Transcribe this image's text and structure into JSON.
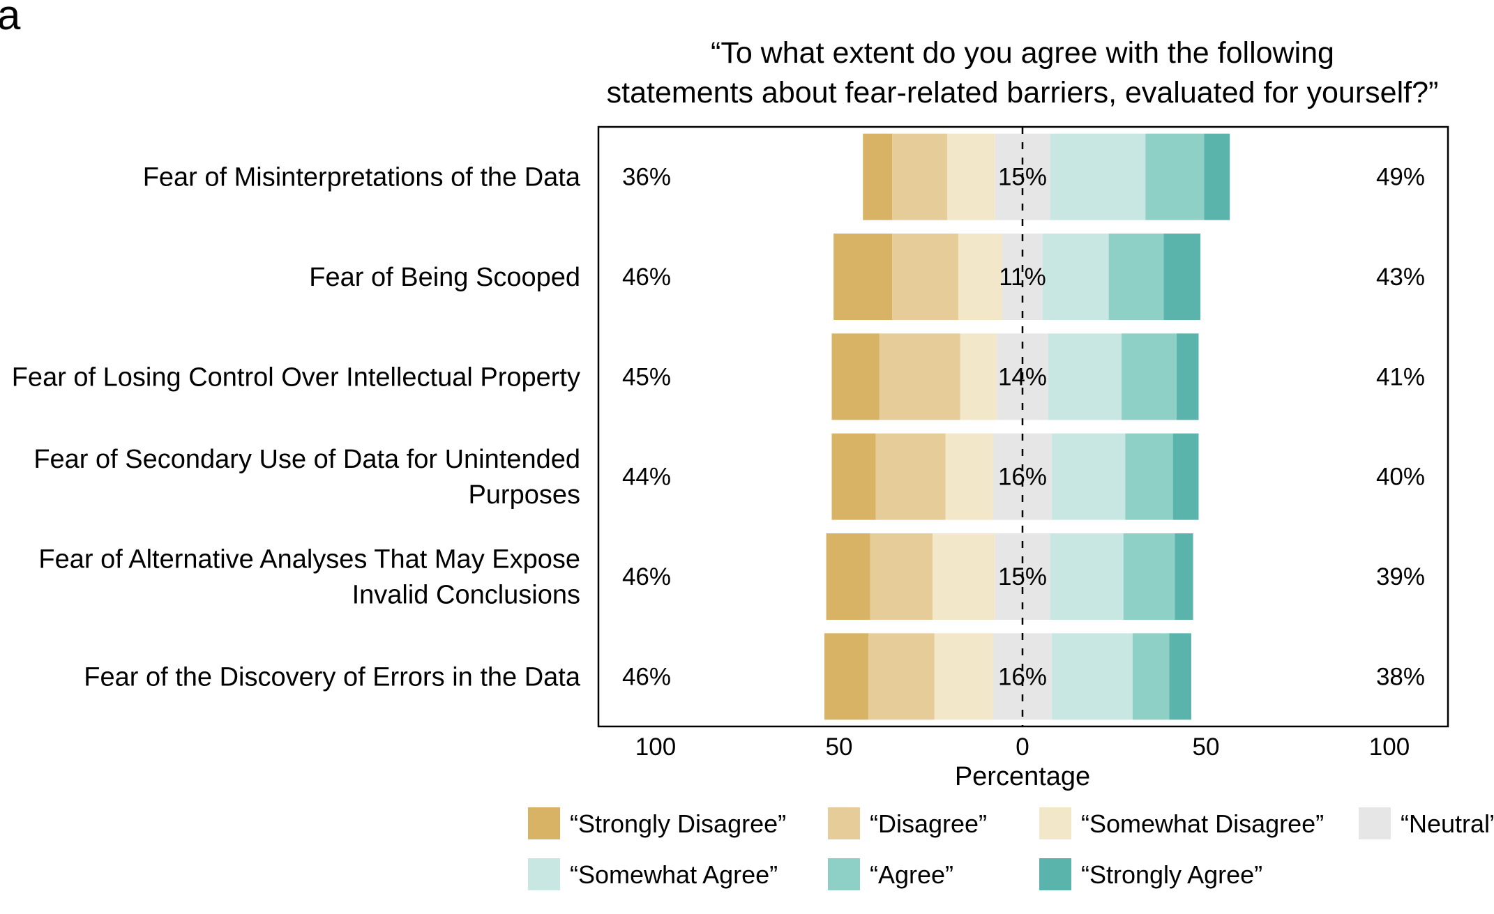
{
  "figure": {
    "panel_letter": "a",
    "title_lines": [
      "“To what extent do you agree with the following",
      "statements about fear-related barriers, evaluated for yourself?”"
    ]
  },
  "chart_data": {
    "type": "bar",
    "orientation": "horizontal",
    "layout": "diverging-stacked",
    "title": "“To what extent do you agree with the following statements about fear-related barriers, evaluated for yourself?”",
    "xlabel": "Percentage",
    "ylabel": "",
    "xlim": [
      -100,
      100
    ],
    "x_ticks": [
      -100,
      -50,
      0,
      50,
      100
    ],
    "x_tick_labels": [
      "100",
      "50",
      "0",
      "50",
      "100"
    ],
    "grid": false,
    "legend_position": "bottom",
    "categories": [
      [
        "Fear of Misinterpretations of the Data"
      ],
      [
        "Fear of Being Scooped"
      ],
      [
        "Fear of Losing Control Over Intellectual Property"
      ],
      [
        "Fear of Secondary Use of Data for Unintended",
        "Purposes"
      ],
      [
        "Fear of Alternative Analyses That May Expose",
        "Invalid Conclusions"
      ],
      [
        "Fear of the Discovery of Errors in the Data"
      ]
    ],
    "series": [
      {
        "name": "“Strongly Disagree”",
        "color": "#d8b365",
        "values": [
          8,
          16,
          13,
          12,
          12,
          12
        ]
      },
      {
        "name": "“Disagree”",
        "color": "#e6cc98",
        "values": [
          15,
          18,
          22,
          19,
          17,
          18
        ]
      },
      {
        "name": "“Somewhat Disagree”",
        "color": "#f3e7c9",
        "values": [
          13,
          12,
          10,
          13,
          17,
          16
        ]
      },
      {
        "name": "“Neutral”",
        "color": "#e5e6e5",
        "values": [
          15,
          11,
          14,
          16,
          15,
          16
        ]
      },
      {
        "name": "“Somewhat Agree”",
        "color": "#c8e6e2",
        "values": [
          26,
          18,
          20,
          20,
          20,
          22
        ]
      },
      {
        "name": "“Agree”",
        "color": "#8fd0c6",
        "values": [
          16,
          15,
          15,
          13,
          14,
          10
        ]
      },
      {
        "name": "“Strongly Agree”",
        "color": "#5ab4ac",
        "values": [
          7,
          10,
          6,
          7,
          5,
          6
        ]
      }
    ],
    "left_labels": [
      "36%",
      "46%",
      "45%",
      "44%",
      "46%",
      "46%"
    ],
    "center_labels": [
      "15%",
      "11%",
      "14%",
      "16%",
      "15%",
      "16%"
    ],
    "right_labels": [
      "49%",
      "43%",
      "41%",
      "40%",
      "39%",
      "38%"
    ]
  }
}
